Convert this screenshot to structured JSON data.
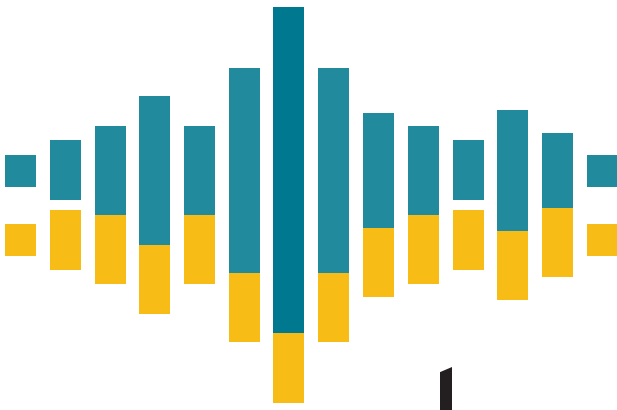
{
  "colors": {
    "teal": "#218a9c",
    "teal_dark": "#00788f",
    "yellow": "#f7bd16",
    "black": "#231f20"
  },
  "graphic": {
    "description_icon": "audio-waveform-logo-icon",
    "bar_count": 14
  }
}
